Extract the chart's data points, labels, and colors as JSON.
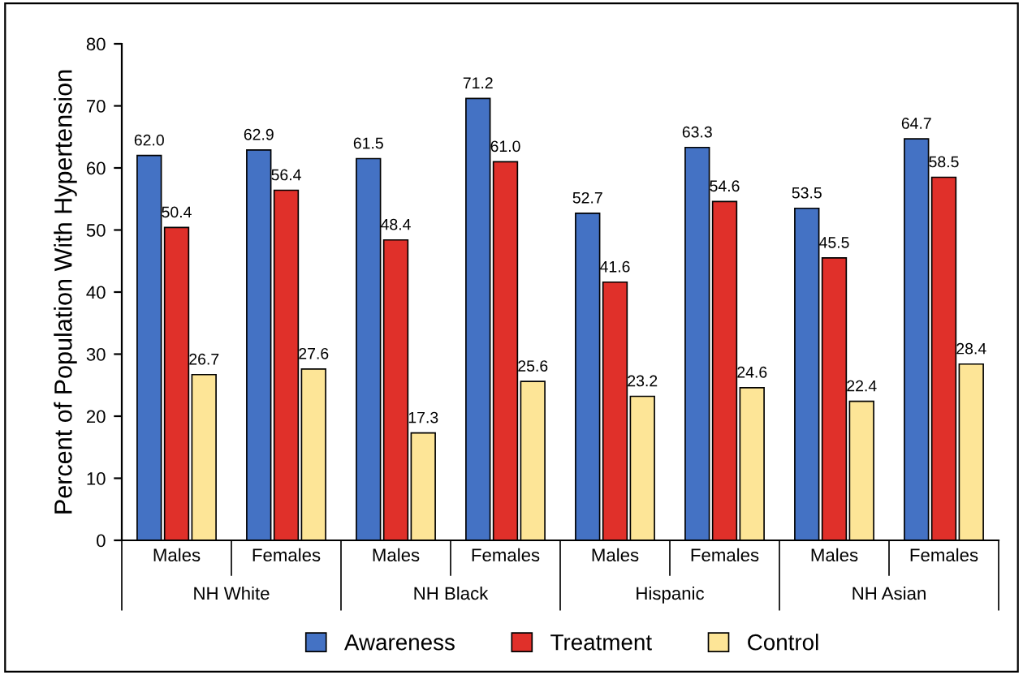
{
  "chart_data": {
    "type": "bar",
    "ylabel": "Percent of Population With Hypertension",
    "categories": [
      "Males",
      "Females",
      "Males",
      "Females",
      "Males",
      "Females",
      "Males",
      "Females"
    ],
    "series": [
      {
        "name": "Awareness",
        "color": "#4472c4",
        "values": [
          62.0,
          62.9,
          61.5,
          71.2,
          52.7,
          63.3,
          53.5,
          64.7
        ],
        "value_labels": [
          "62.0",
          "62.9",
          "61.5",
          "71.2",
          "52.7",
          "63.3",
          "53.5",
          "64.7"
        ]
      },
      {
        "name": "Treatment",
        "color": "#e0302a",
        "values": [
          50.4,
          56.4,
          48.4,
          61.0,
          41.6,
          54.6,
          45.5,
          58.5
        ],
        "value_labels": [
          "50.4",
          "56.4",
          "48.4",
          "61.0",
          "41.6",
          "54.6",
          "45.5",
          "58.5"
        ]
      },
      {
        "name": "Control",
        "color": "#fde597",
        "values": [
          26.7,
          27.6,
          17.3,
          25.6,
          23.2,
          24.6,
          22.4,
          28.4
        ],
        "value_labels": [
          "26.7",
          "27.6",
          "17.3",
          "25.6",
          "23.2",
          "24.6",
          "22.4",
          "28.4"
        ]
      }
    ],
    "annotations": [
      "NH White",
      "NH Black",
      "Hispanic",
      "NH Asian"
    ],
    "ylim": [
      0,
      80
    ],
    "yticks": [
      0,
      10,
      20,
      30,
      40,
      50,
      60,
      70,
      80
    ],
    "grid": false,
    "legend": "bottom"
  }
}
